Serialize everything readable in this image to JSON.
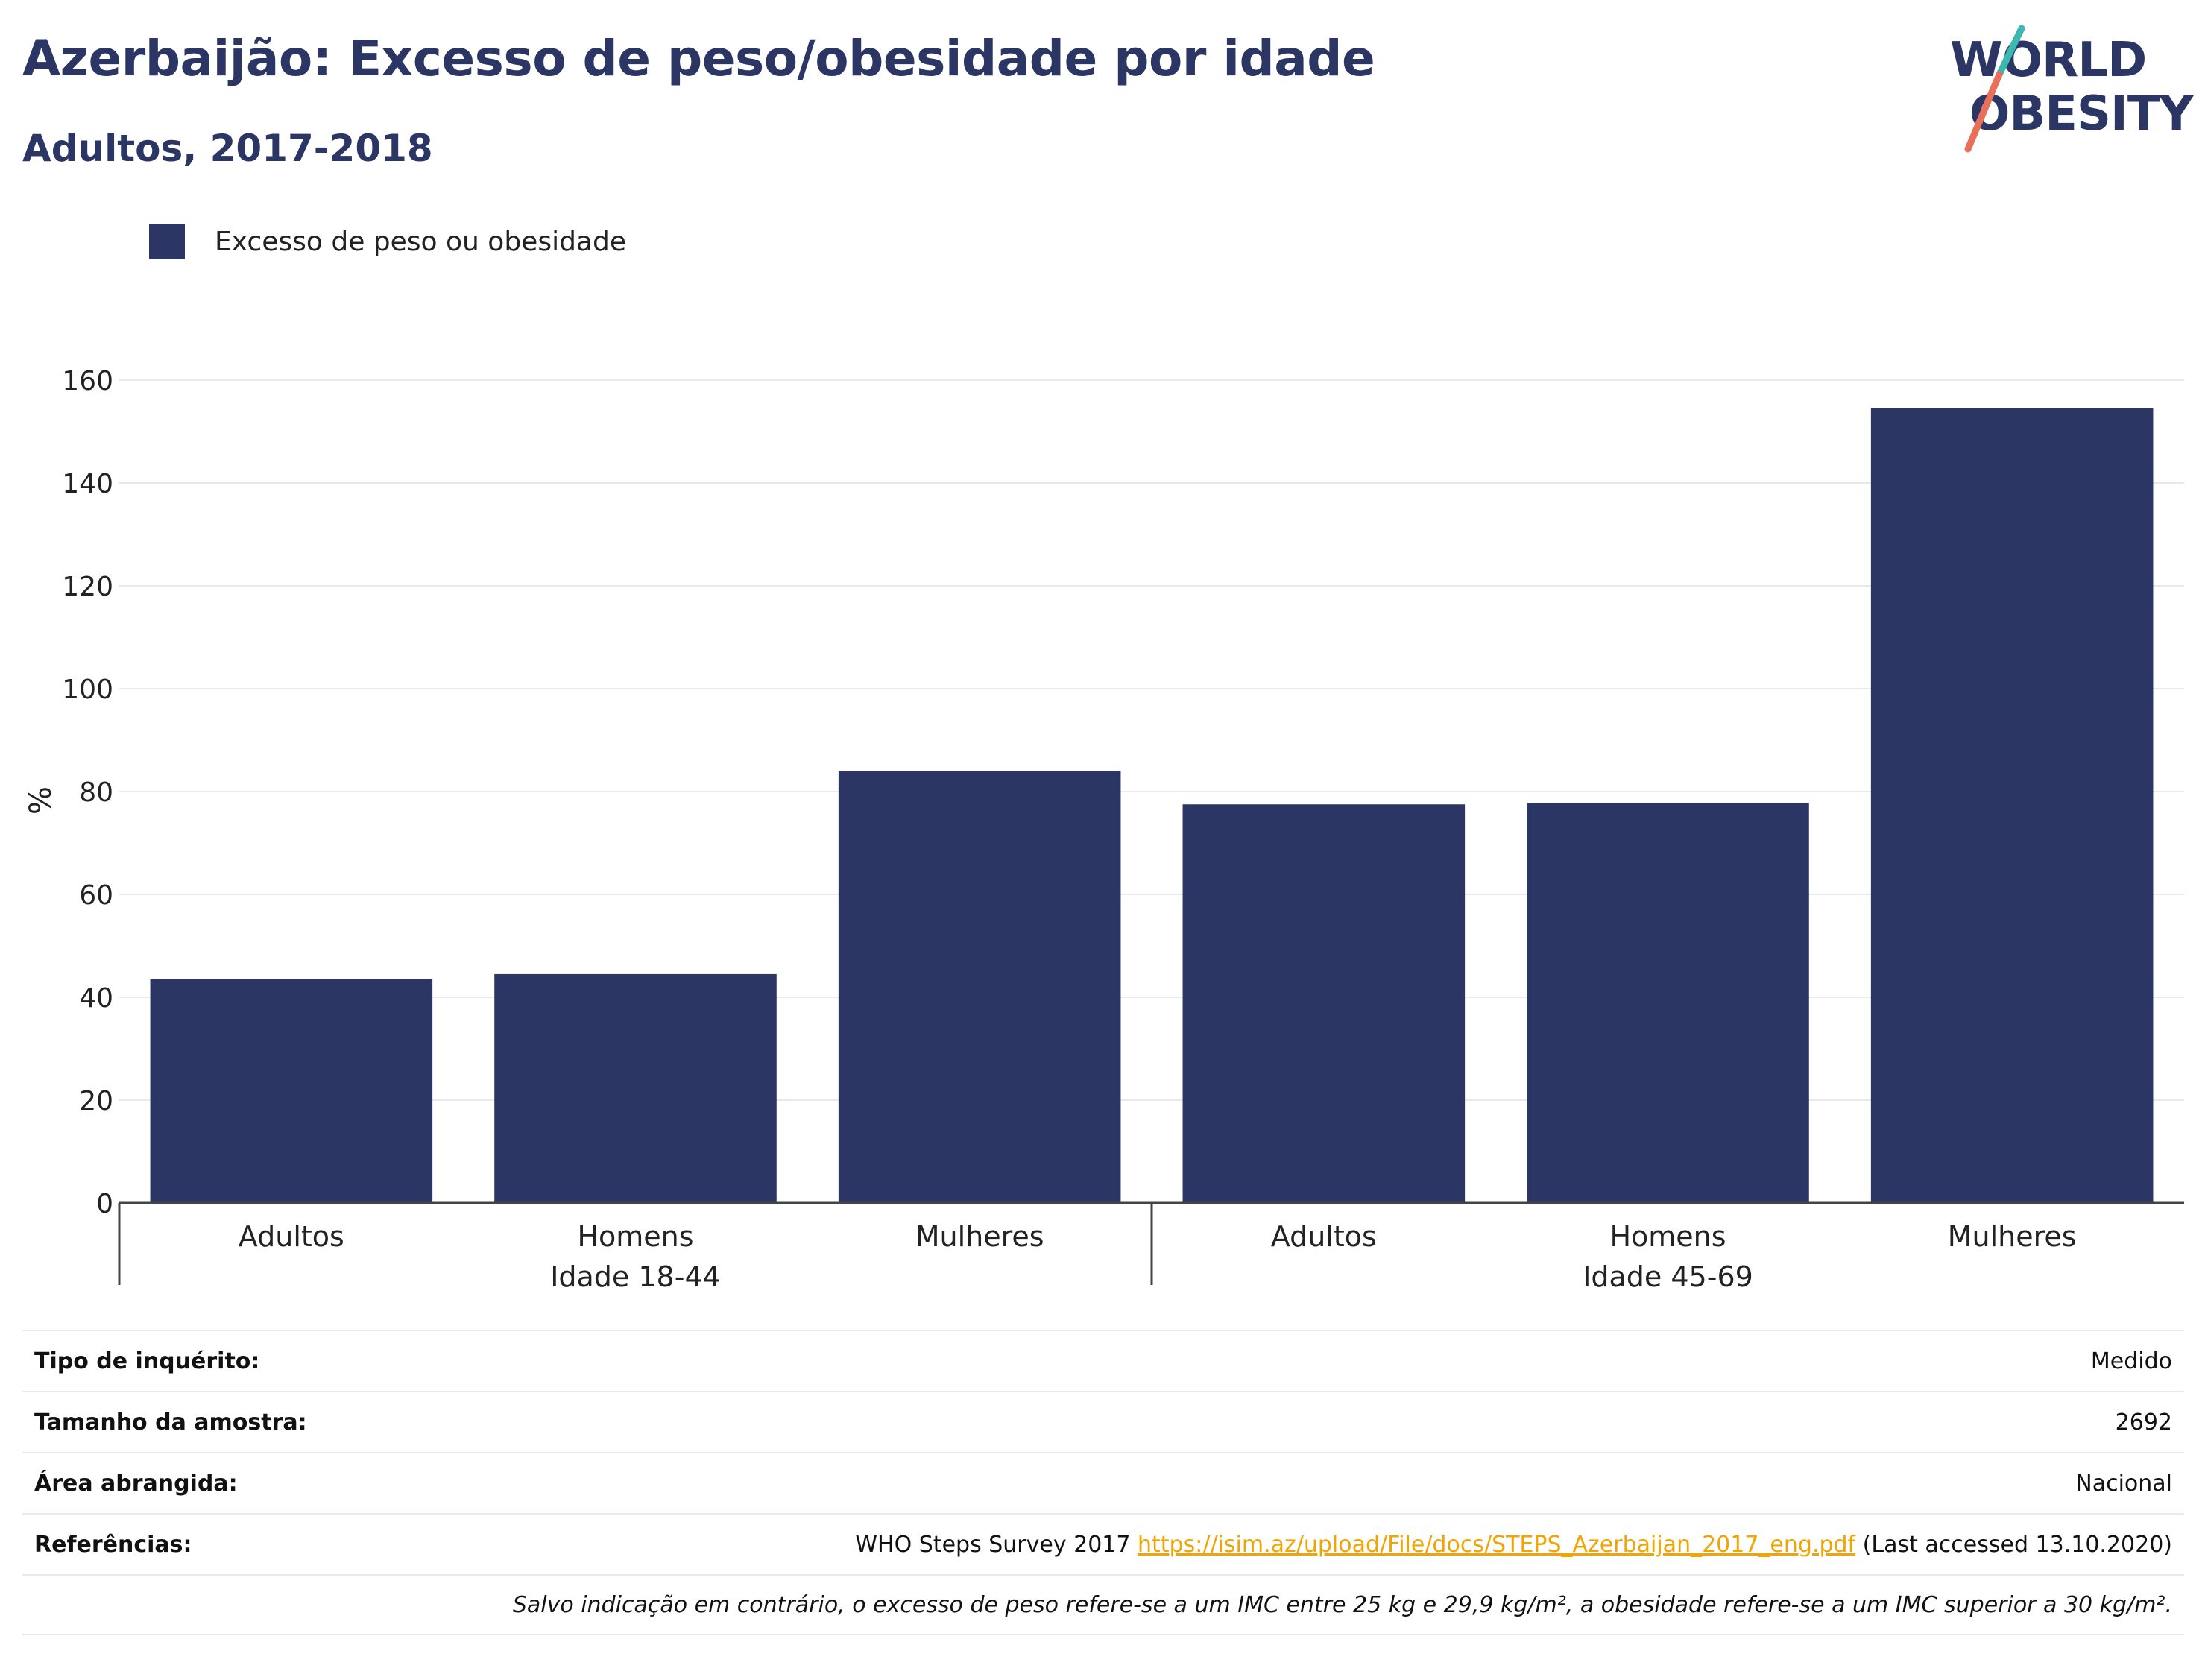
{
  "header": {
    "title": "Azerbaijão: Excesso de peso/obesidade por idade",
    "subtitle": "Adultos, 2017-2018"
  },
  "logo": {
    "line1": "WORLD",
    "line2": "OBESITY",
    "accent_teal": "#3bb8b0",
    "accent_coral": "#e8705a"
  },
  "legend": {
    "label": "Excesso de peso ou obesidade",
    "color": "#2b3664"
  },
  "chart_data": {
    "type": "bar",
    "title": "Azerbaijão: Excesso de peso/obesidade por idade",
    "subtitle": "Adultos, 2017-2018",
    "ylabel": "%",
    "xlabel": "",
    "ylim": [
      0,
      160
    ],
    "yticks": [
      0,
      20,
      40,
      60,
      80,
      100,
      120,
      140,
      160
    ],
    "grid": true,
    "legend_position": "top-left",
    "groups": [
      {
        "label": "Idade 18-44",
        "categories": [
          "Adultos",
          "Homens",
          "Mulheres"
        ]
      },
      {
        "label": "Idade 45-69",
        "categories": [
          "Adultos",
          "Homens",
          "Mulheres"
        ]
      }
    ],
    "categories": [
      "Adultos",
      "Homens",
      "Mulheres",
      "Adultos",
      "Homens",
      "Mulheres"
    ],
    "series": [
      {
        "name": "Excesso de peso ou obesidade",
        "color": "#2b3664",
        "values": [
          43.5,
          44.5,
          84,
          77.5,
          77.7,
          154.5
        ]
      }
    ]
  },
  "info": {
    "survey_type_label": "Tipo de inquérito:",
    "survey_type_value": "Medido",
    "sample_size_label": "Tamanho da amostra:",
    "sample_size_value": "2692",
    "area_label": "Área abrangida:",
    "area_value": "Nacional",
    "references_label": "Referências:",
    "references_prefix": "WHO Steps Survey 2017 ",
    "references_link": "https://isim.az/upload/File/docs/STEPS_Azerbaijan_2017_eng.pdf",
    "references_suffix": " (Last accessed 13.10.2020)",
    "note": "Salvo indicação em contrário, o excesso de peso refere-se a um IMC entre 25 kg e 29,9 kg/m², a obesidade refere-se a um IMC superior a 30 kg/m²."
  }
}
